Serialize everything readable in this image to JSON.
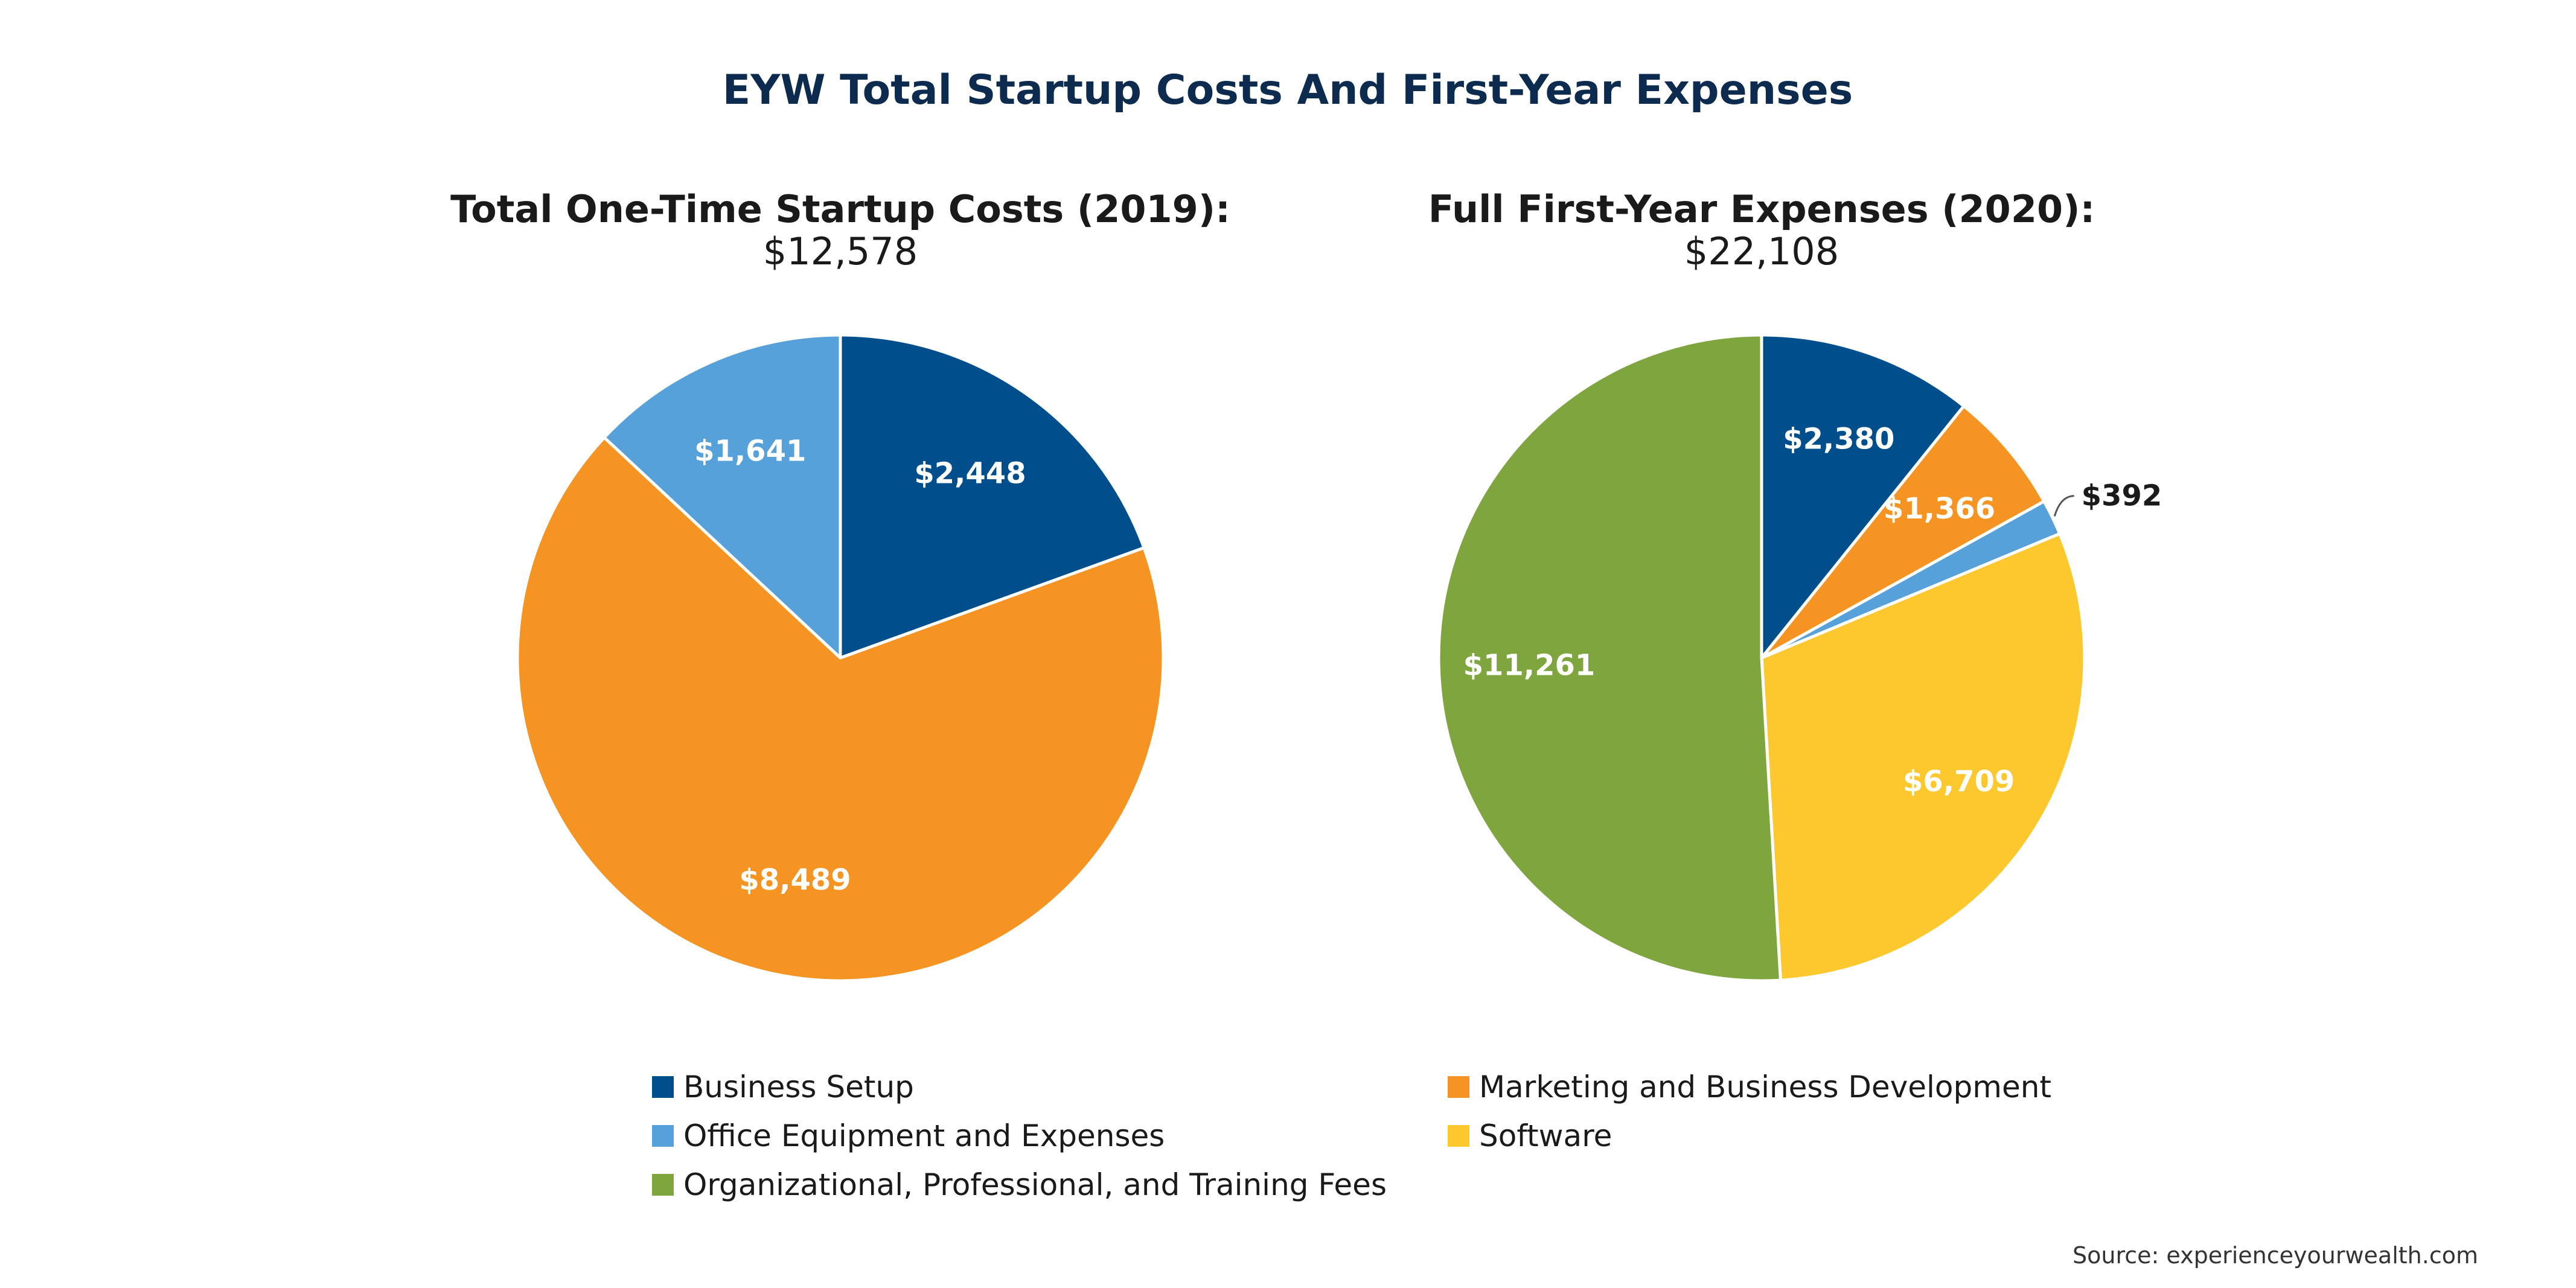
{
  "title": "EYW Total Startup Costs And First-Year Expenses",
  "source": "Source: experienceyourwealth.com",
  "categories": {
    "business_setup": "Business Setup",
    "marketing": "Marketing and Business Development",
    "office": "Office Equipment and Expenses",
    "software": "Software",
    "organizational": "Organizational, Professional, and Training Fees"
  },
  "colors": {
    "business_setup": "#004f8c",
    "marketing": "#f59423",
    "office": "#56a1d9",
    "software": "#fdc72e",
    "organizational": "#7fa53f"
  },
  "chart_data": [
    {
      "type": "pie",
      "title": "Total One-Time Startup Costs (2019):",
      "total": "$12,578",
      "slices": [
        {
          "category": "Business Setup",
          "value": 2448,
          "label": "$2,448"
        },
        {
          "category": "Marketing and Business Development",
          "value": 8489,
          "label": "$8,489"
        },
        {
          "category": "Office Equipment and Expenses",
          "value": 1641,
          "label": "$1,641"
        }
      ]
    },
    {
      "type": "pie",
      "title": "Full First-Year Expenses (2020):",
      "total": "$22,108",
      "slices": [
        {
          "category": "Business Setup",
          "value": 2380,
          "label": "$2,380"
        },
        {
          "category": "Marketing and Business Development",
          "value": 1366,
          "label": "$1,366"
        },
        {
          "category": "Office Equipment and Expenses",
          "value": 392,
          "label": "$392"
        },
        {
          "category": "Software",
          "value": 6709,
          "label": "$6,709"
        },
        {
          "category": "Organizational, Professional, and Training Fees",
          "value": 11261,
          "label": "$11,261"
        }
      ]
    }
  ],
  "legend": [
    {
      "label": "Business Setup",
      "color": "#004f8c"
    },
    {
      "label": "Marketing and Business Development",
      "color": "#f59423"
    },
    {
      "label": "Office Equipment and Expenses",
      "color": "#56a1d9"
    },
    {
      "label": "Software",
      "color": "#fdc72e"
    },
    {
      "label": "Organizational, Professional, and Training Fees",
      "color": "#7fa53f"
    }
  ]
}
